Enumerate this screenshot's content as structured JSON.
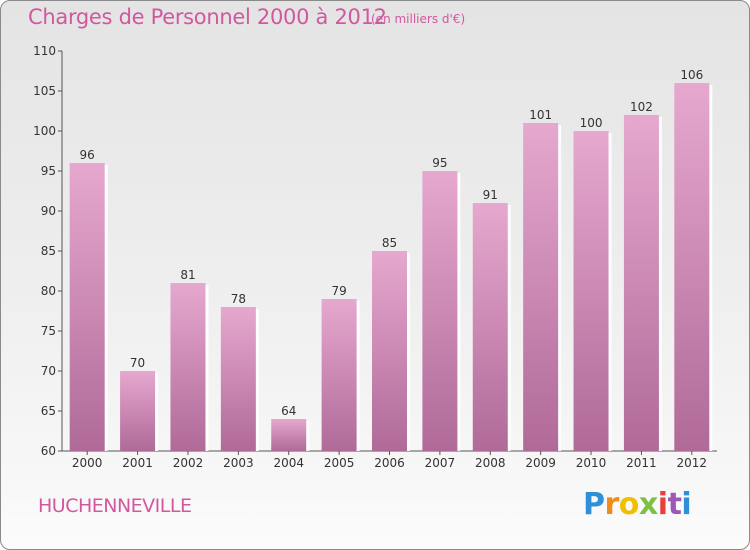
{
  "colors": {
    "accent": "#d1589f",
    "bar_top": "#e6a8cf",
    "bar_bottom": "#b06a98"
  },
  "header": {
    "title": "Charges de Personnel 2000 à 2012",
    "subtitle": "(en milliers d'€)"
  },
  "footer": {
    "commune": "HUCHENNEVILLE",
    "brand": "Proxiti"
  },
  "chart_data": {
    "type": "bar",
    "categories": [
      "2000",
      "2001",
      "2002",
      "2003",
      "2004",
      "2005",
      "2006",
      "2007",
      "2008",
      "2009",
      "2010",
      "2011",
      "2012"
    ],
    "values": [
      96,
      70,
      81,
      78,
      64,
      79,
      85,
      95,
      91,
      101,
      100,
      102,
      106
    ],
    "ylim": [
      60,
      110
    ],
    "yticks": [
      60,
      65,
      70,
      75,
      80,
      85,
      90,
      95,
      100,
      105,
      110
    ],
    "grid": false
  }
}
